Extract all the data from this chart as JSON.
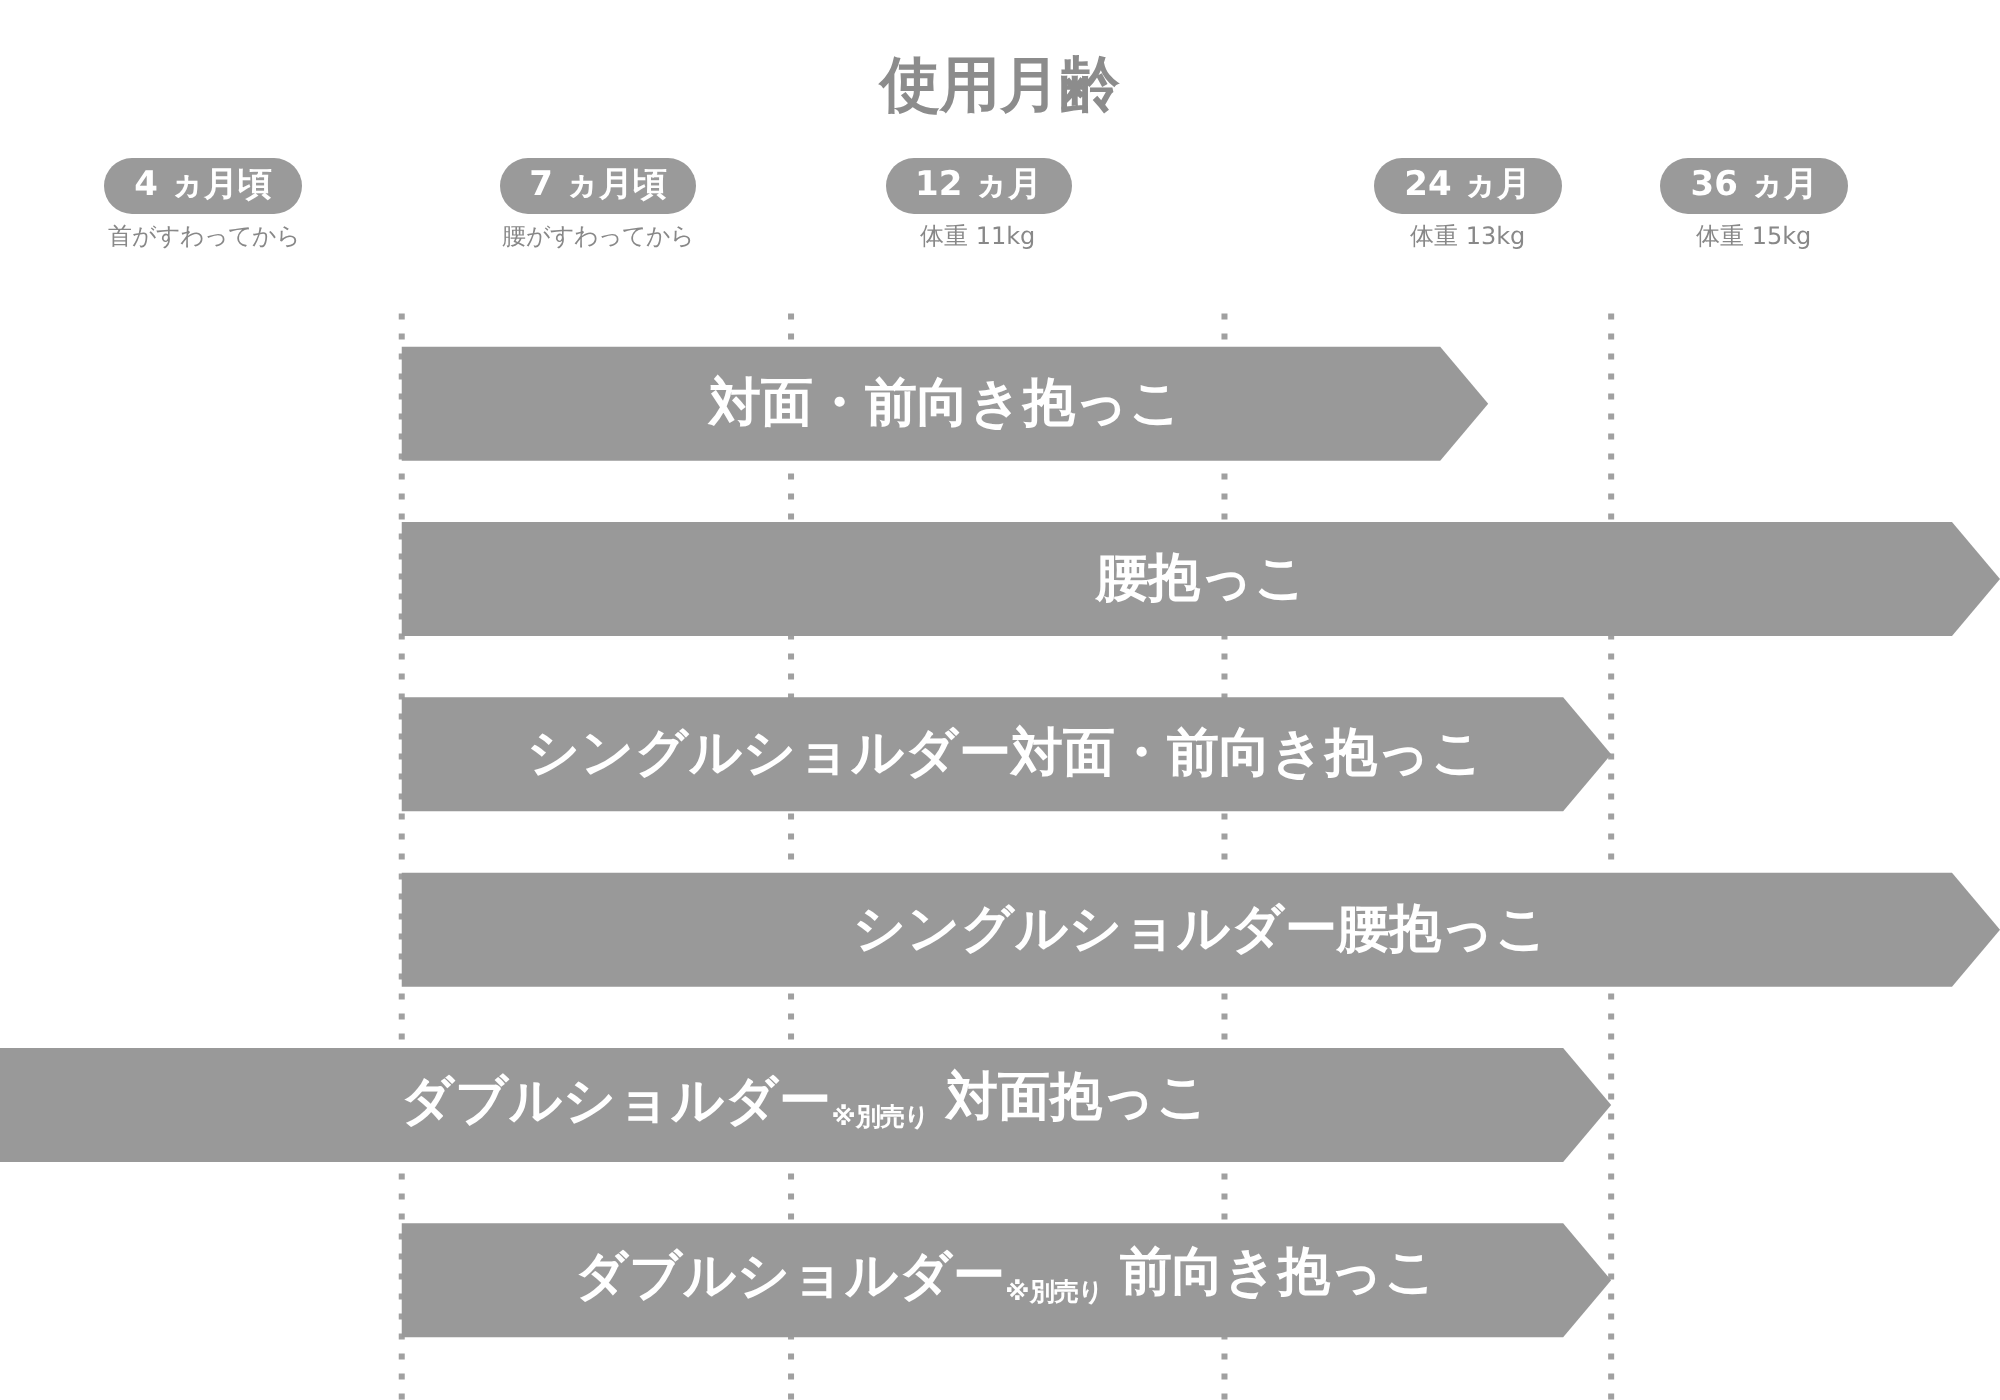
{
  "chart_data": {
    "type": "bar",
    "orientation": "horizontal",
    "title": "使用月齢",
    "categories": [
      "対面・前向き抱っこ",
      "腰抱っこ",
      "シングルショルダー対面・前向き抱っこ",
      "シングルショルダー腰抱っこ",
      "ダブルショルダー$_{※別売り}$ 対面抱っこ",
      "ダブルショルダー$_{※別売り}$ 前向き抱っこ"
    ],
    "base": [
      5.3,
      5.3,
      5.3,
      5.3,
      3,
      5.3
    ],
    "values": [
      19.4,
      45.7,
      24.1,
      45.7,
      26.4,
      24.1
    ],
    "color": "#999999",
    "log": "x",
    "xlim": [
      3,
      51
    ],
    "xticks": [
      {
        "value": 4,
        "label": "4 ヵ月頃"
      },
      {
        "value": 7,
        "label": "7 ヵ月頃"
      },
      {
        "value": 12,
        "label": "12 ヵ月"
      },
      {
        "value": 24,
        "label": "24 ヵ月"
      },
      {
        "value": 36,
        "label": "36 ヵ月"
      }
    ],
    "annotations": [
      "首がすわってから",
      "腰がすわってから",
      "体重 11kg",
      "体重 13kg",
      "体重 15kg"
    ],
    "ref_lines": [
      {
        "axis": "x",
        "value": 5.3,
        "color": "#a0a0a0",
        "line_style": "dotted"
      },
      {
        "axis": "x",
        "value": 9.2,
        "color": "#a0a0a0",
        "line_style": "dotted"
      },
      {
        "axis": "x",
        "value": 17,
        "color": "#a0a0a0",
        "line_style": "dotted"
      },
      {
        "axis": "x",
        "value": 29.4,
        "color": "#a0a0a0",
        "line_style": "dotted"
      }
    ],
    "tick_labels": "x",
    "grid": false
  }
}
